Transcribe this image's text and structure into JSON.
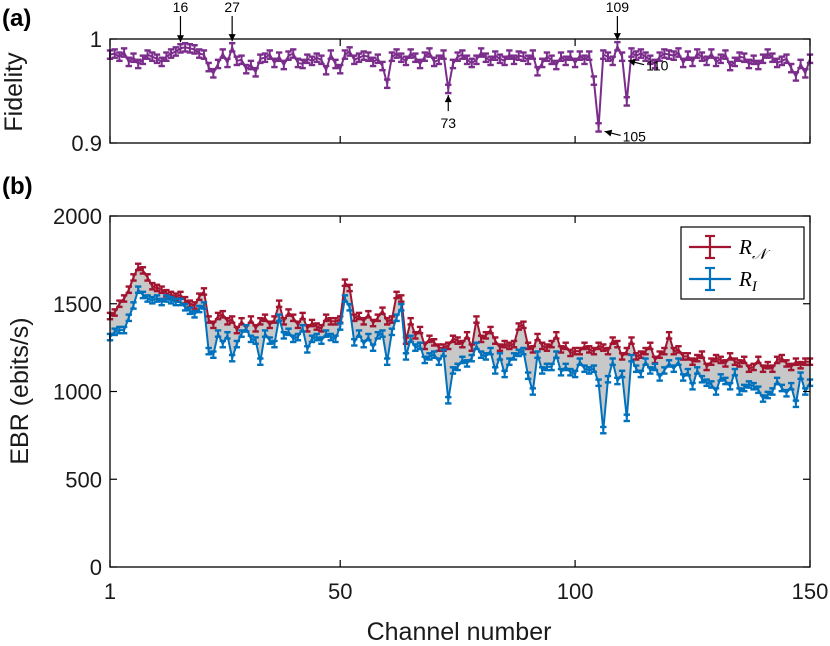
{
  "colors": {
    "fidelity": "#7B2D8B",
    "rn": "#A2142F",
    "ri": "#0072BD",
    "shade": "#C8C8C8",
    "axis": "#000000"
  },
  "chart_data": [
    {
      "type": "line",
      "panel_label": "(a)",
      "title": "",
      "xlabel": "",
      "ylabel": "Fidelity",
      "xlim": [
        1,
        150
      ],
      "ylim": [
        0.9,
        1.0
      ],
      "xticks": [
        1,
        50,
        100,
        150
      ],
      "yticks": [
        0.9,
        1
      ],
      "ytick_labels": [
        "0.9",
        "1"
      ],
      "grid": false,
      "series": [
        {
          "values": [
            0.985,
            0.986,
            0.983,
            0.987,
            0.978,
            0.982,
            0.976,
            0.98,
            0.985,
            0.983,
            0.981,
            0.978,
            0.983,
            0.986,
            0.988,
            0.991,
            0.992,
            0.991,
            0.99,
            0.986,
            0.985,
            0.973,
            0.967,
            0.976,
            0.986,
            0.977,
            0.992,
            0.979,
            0.98,
            0.971,
            0.975,
            0.968,
            0.981,
            0.982,
            0.985,
            0.977,
            0.983,
            0.975,
            0.984,
            0.986,
            0.977,
            0.976,
            0.981,
            0.979,
            0.982,
            0.98,
            0.97,
            0.985,
            0.976,
            0.971,
            0.985,
            0.988,
            0.98,
            0.982,
            0.984,
            0.983,
            0.978,
            0.981,
            0.974,
            0.957,
            0.983,
            0.986,
            0.982,
            0.979,
            0.986,
            0.982,
            0.976,
            0.983,
            0.987,
            0.978,
            0.98,
            0.985,
            0.952,
            0.976,
            0.983,
            0.985,
            0.98,
            0.977,
            0.98,
            0.987,
            0.982,
            0.979,
            0.984,
            0.981,
            0.979,
            0.985,
            0.98,
            0.984,
            0.983,
            0.98,
            0.985,
            0.969,
            0.977,
            0.983,
            0.98,
            0.975,
            0.983,
            0.979,
            0.984,
            0.977,
            0.984,
            0.98,
            0.984,
            0.96,
            0.915,
            0.985,
            0.983,
            0.979,
            0.993,
            0.983,
            0.94,
            0.987,
            0.984,
            0.986,
            0.983,
            0.98,
            0.976,
            0.983,
            0.986,
            0.985,
            0.984,
            0.987,
            0.977,
            0.984,
            0.978,
            0.986,
            0.983,
            0.979,
            0.986,
            0.978,
            0.981,
            0.985,
            0.974,
            0.978,
            0.983,
            0.982,
            0.976,
            0.98,
            0.975,
            0.981,
            0.986,
            0.982,
            0.977,
            0.979,
            0.981,
            0.972,
            0.964,
            0.976,
            0.967,
            0.981
          ],
          "error": 0.004
        }
      ],
      "annotations": [
        {
          "channel": 16,
          "text": "16",
          "direction": "above"
        },
        {
          "channel": 27,
          "text": "27",
          "direction": "above"
        },
        {
          "channel": 109,
          "text": "109",
          "direction": "above"
        },
        {
          "channel": 73,
          "text": "73",
          "direction": "below"
        },
        {
          "channel": 105,
          "text": "105",
          "direction": "right"
        },
        {
          "channel": 110,
          "text": "110",
          "direction": "right"
        }
      ]
    },
    {
      "type": "line",
      "panel_label": "(b)",
      "title": "",
      "xlabel": "Channel number",
      "ylabel": "EBR (ebits/s)",
      "xlim": [
        1,
        150
      ],
      "ylim": [
        0,
        2000
      ],
      "xticks": [
        1,
        50,
        100,
        150
      ],
      "yticks": [
        0,
        500,
        1000,
        1500,
        2000
      ],
      "grid": false,
      "legend_position": "top-right",
      "shaded_between_series": true,
      "series": [
        {
          "name": "R_N",
          "legend_label": "R",
          "legend_sub": "𝒩",
          "values": [
            1430,
            1450,
            1500,
            1530,
            1580,
            1650,
            1710,
            1690,
            1650,
            1600,
            1590,
            1580,
            1560,
            1550,
            1540,
            1550,
            1520,
            1500,
            1490,
            1540,
            1570,
            1410,
            1380,
            1430,
            1440,
            1400,
            1410,
            1350,
            1400,
            1360,
            1410,
            1360,
            1400,
            1420,
            1380,
            1410,
            1500,
            1400,
            1450,
            1420,
            1380,
            1430,
            1360,
            1390,
            1370,
            1360,
            1420,
            1400,
            1400,
            1410,
            1620,
            1590,
            1420,
            1430,
            1400,
            1440,
            1390,
            1420,
            1460,
            1400,
            1410,
            1550,
            1530,
            1290,
            1400,
            1320,
            1350,
            1260,
            1300,
            1280,
            1250,
            1250,
            1260,
            1300,
            1290,
            1270,
            1320,
            1250,
            1410,
            1300,
            1320,
            1350,
            1290,
            1250,
            1270,
            1260,
            1270,
            1370,
            1380,
            1260,
            1240,
            1310,
            1260,
            1250,
            1270,
            1320,
            1240,
            1260,
            1220,
            1230,
            1230,
            1260,
            1240,
            1230,
            1260,
            1250,
            1230,
            1290,
            1270,
            1200,
            1230,
            1290,
            1200,
            1210,
            1230,
            1260,
            1180,
            1210,
            1230,
            1320,
            1230,
            1240,
            1200,
            1200,
            1170,
            1190,
            1210,
            1140,
            1170,
            1190,
            1180,
            1160,
            1200,
            1170,
            1160,
            1180,
            1130,
            1140,
            1180,
            1130,
            1150,
            1130,
            1180,
            1190,
            1160,
            1140,
            1170,
            1150,
            1170,
            1170
          ],
          "error": 18
        },
        {
          "name": "R_I",
          "legend_label": "R",
          "legend_sub": "I",
          "values": [
            1310,
            1340,
            1350,
            1350,
            1420,
            1490,
            1580,
            1550,
            1530,
            1520,
            1530,
            1510,
            1530,
            1520,
            1510,
            1510,
            1480,
            1460,
            1440,
            1470,
            1490,
            1230,
            1210,
            1330,
            1270,
            1320,
            1190,
            1270,
            1330,
            1360,
            1300,
            1290,
            1170,
            1330,
            1290,
            1270,
            1420,
            1320,
            1340,
            1300,
            1310,
            1360,
            1240,
            1300,
            1310,
            1290,
            1330,
            1310,
            1300,
            1370,
            1530,
            1480,
            1280,
            1330,
            1270,
            1310,
            1250,
            1320,
            1330,
            1170,
            1340,
            1420,
            1480,
            1200,
            1300,
            1250,
            1260,
            1180,
            1200,
            1210,
            1170,
            1220,
            950,
            1120,
            1140,
            1180,
            1160,
            1190,
            1260,
            1210,
            1200,
            1230,
            1120,
            1200,
            1100,
            1170,
            1200,
            1220,
            1230,
            1090,
            1000,
            1210,
            1120,
            1140,
            1140,
            1210,
            1110,
            1140,
            1110,
            1100,
            1170,
            1130,
            1120,
            1130,
            1050,
            780,
            1070,
            1170,
            1060,
            1100,
            850,
            1190,
            1130,
            1100,
            1170,
            1120,
            1140,
            1080,
            1120,
            1160,
            1130,
            1170,
            1080,
            1110,
            1030,
            1120,
            1070,
            1050,
            1040,
            1000,
            1080,
            1060,
            1030,
            1110,
            1000,
            1020,
            1040,
            1030,
            1010,
            960,
            980,
            1000,
            1060,
            1020,
            990,
            1030,
            930,
            1090,
            1000,
            1050
          ],
          "error": 18
        }
      ]
    }
  ]
}
